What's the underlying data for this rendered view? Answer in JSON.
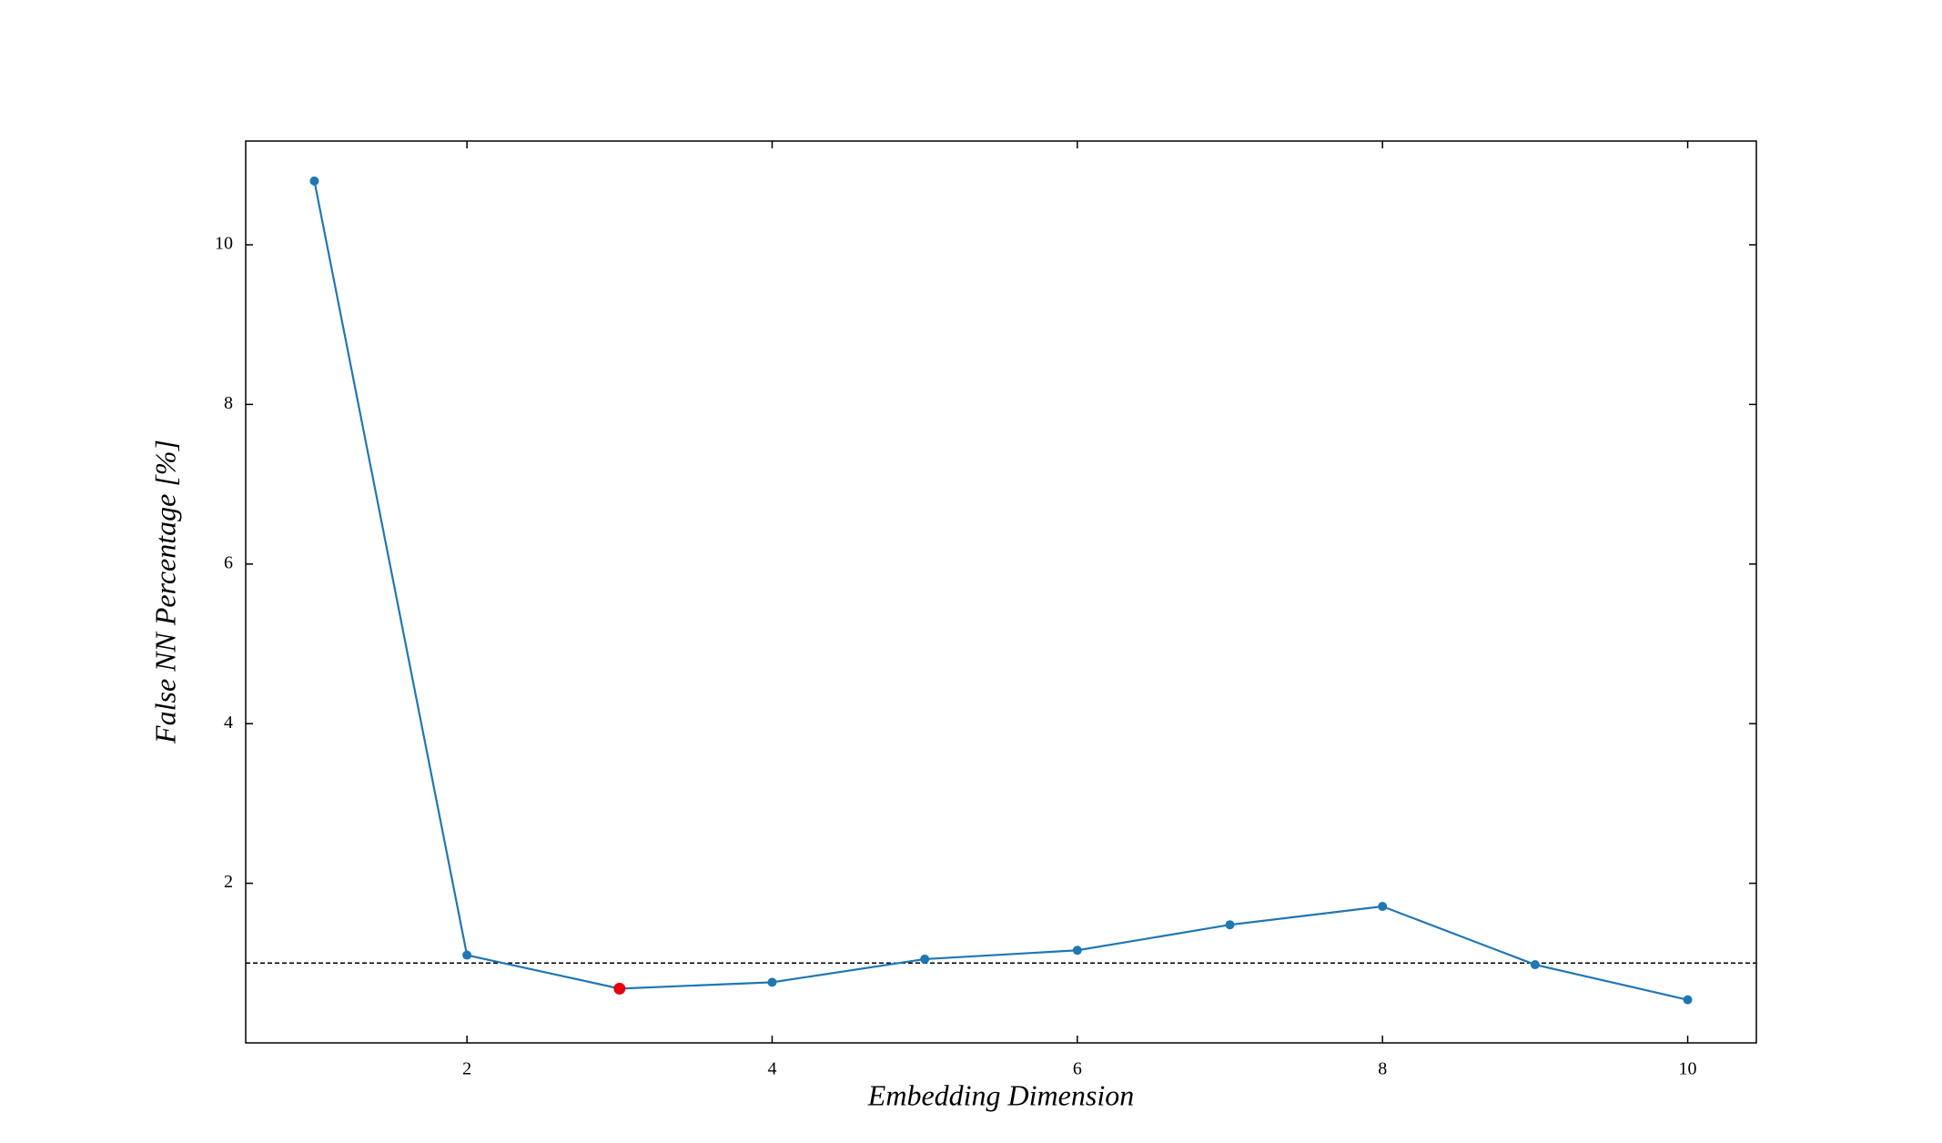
{
  "chart_data": {
    "type": "line",
    "x_label": "Embedding Dimension",
    "y_label": "False NN Percentage [%]",
    "x": [
      1,
      2,
      3,
      4,
      5,
      6,
      7,
      8,
      9,
      10
    ],
    "series": [
      {
        "color": "#1f77b4",
        "values": [
          10.8,
          1.1,
          0.68,
          0.76,
          1.05,
          1.16,
          1.48,
          1.71,
          0.98,
          0.54
        ]
      }
    ],
    "highlight": {
      "index": 2,
      "color": "#e8000b"
    },
    "hline": {
      "value": 1,
      "style": "dashed",
      "color": "#000000"
    },
    "xlim": [
      0.55,
      10.45
    ],
    "ylim": [
      0,
      11.3
    ],
    "xticks": [
      2,
      4,
      6,
      8,
      10
    ],
    "yticks": [
      2,
      4,
      6,
      8,
      10
    ],
    "grid": false
  }
}
